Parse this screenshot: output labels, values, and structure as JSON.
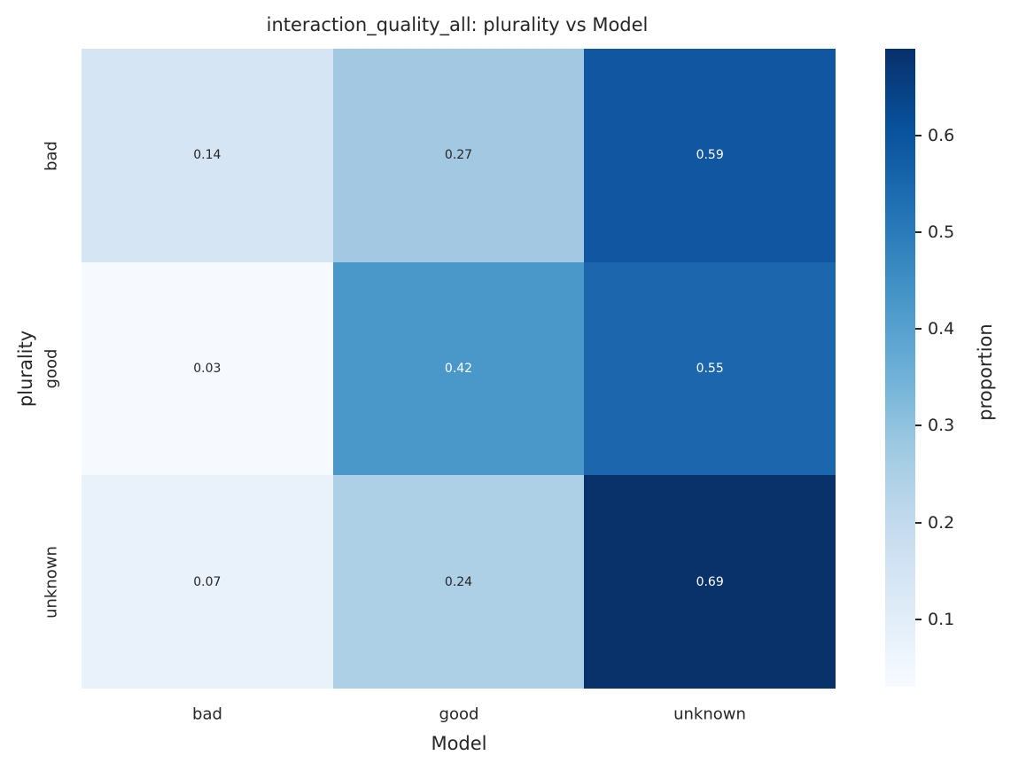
{
  "title": "interaction_quality_all: plurality vs Model",
  "chart_data": {
    "type": "heatmap",
    "title": "interaction_quality_all: plurality vs Model",
    "xlabel": "Model",
    "ylabel": "plurality",
    "x_categories": [
      "bad",
      "good",
      "unknown"
    ],
    "y_categories": [
      "bad",
      "good",
      "unknown"
    ],
    "values": [
      [
        0.14,
        0.27,
        0.59
      ],
      [
        0.03,
        0.42,
        0.55
      ],
      [
        0.07,
        0.24,
        0.69
      ]
    ],
    "cell_labels": [
      [
        "0.14",
        "0.27",
        "0.59"
      ],
      [
        "0.03",
        "0.42",
        "0.55"
      ],
      [
        "0.07",
        "0.24",
        "0.69"
      ]
    ],
    "cell_colors": [
      [
        "#d6e5f4",
        "#a3c9e2",
        "#1056a0"
      ],
      [
        "#f6fafe",
        "#4a97c9",
        "#1c66ad"
      ],
      [
        "#e9f1fa",
        "#aed0e6",
        "#09326b"
      ]
    ],
    "cell_text_colors": [
      [
        "#262626",
        "#262626",
        "#ffffff"
      ],
      [
        "#262626",
        "#ffffff",
        "#ffffff"
      ],
      [
        "#262626",
        "#262626",
        "#ffffff"
      ]
    ],
    "grid": false,
    "legend_position": "none",
    "colorbar": {
      "label": "proportion",
      "ticks": [
        "0.1",
        "0.2",
        "0.3",
        "0.4",
        "0.5",
        "0.6"
      ],
      "tick_values": [
        0.1,
        0.2,
        0.3,
        0.4,
        0.5,
        0.6
      ],
      "vmin": 0.03,
      "vmax": 0.69,
      "cmap_name": "Blues",
      "gradient_stops": [
        {
          "t": 0.0,
          "color": "#f7fbff"
        },
        {
          "t": 0.125,
          "color": "#deebf7"
        },
        {
          "t": 0.25,
          "color": "#c6dbef"
        },
        {
          "t": 0.375,
          "color": "#9ecae1"
        },
        {
          "t": 0.5,
          "color": "#6baed6"
        },
        {
          "t": 0.625,
          "color": "#4292c6"
        },
        {
          "t": 0.75,
          "color": "#2171b5"
        },
        {
          "t": 0.875,
          "color": "#08519c"
        },
        {
          "t": 1.0,
          "color": "#08306b"
        }
      ]
    },
    "colors": {
      "background": "#ffffff",
      "text": "#262626"
    }
  }
}
